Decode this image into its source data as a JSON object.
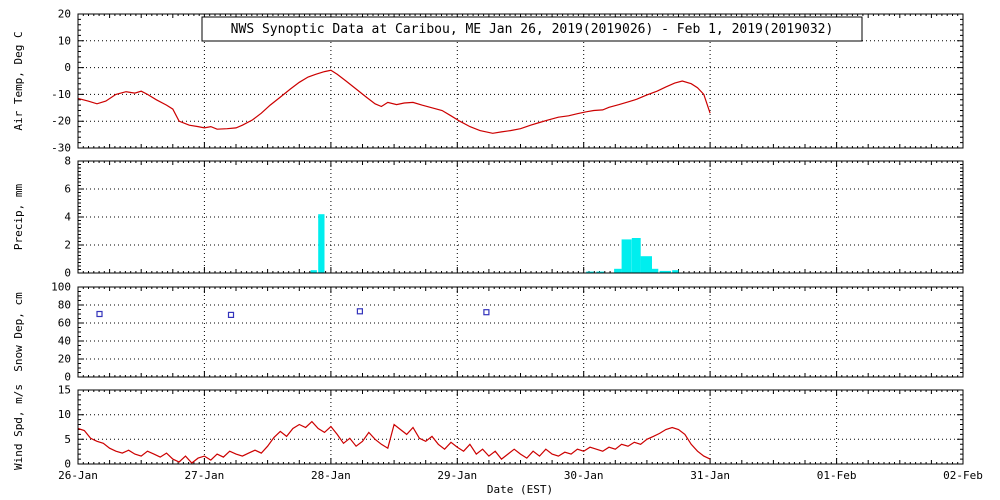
{
  "chart_data": {
    "type": "multi-panel-timeseries",
    "title": "NWS Synoptic Data at Caribou, ME  Jan 26, 2019(2019026) - Feb  1, 2019(2019032)",
    "xlabel": "Date (EST)",
    "x_tick_labels": [
      "26-Jan",
      "27-Jan",
      "28-Jan",
      "29-Jan",
      "30-Jan",
      "31-Jan",
      "01-Feb",
      "02-Feb"
    ],
    "x_range_days": [
      0,
      7
    ],
    "grid": "dotted",
    "legend": "none",
    "colors": {
      "line": "#cc0000",
      "precip_bar": "#00eeee",
      "snow_marker": "#3333bb",
      "axis": "#000000",
      "background": "#ffffff"
    },
    "panels": [
      {
        "name": "air_temp",
        "ylabel": "Air Temp, Deg C",
        "ylim": [
          -30,
          20
        ],
        "yticks": [
          20,
          10,
          0,
          -10,
          -20,
          -30
        ],
        "minor_step": 2,
        "type": "line",
        "points": [
          [
            0.0,
            -11.5
          ],
          [
            0.08,
            -12.5
          ],
          [
            0.15,
            -13.5
          ],
          [
            0.22,
            -12.5
          ],
          [
            0.3,
            -10
          ],
          [
            0.38,
            -9
          ],
          [
            0.45,
            -9.5
          ],
          [
            0.5,
            -8.8
          ],
          [
            0.55,
            -10
          ],
          [
            0.62,
            -12
          ],
          [
            0.7,
            -14
          ],
          [
            0.75,
            -15.5
          ],
          [
            0.8,
            -20
          ],
          [
            0.88,
            -21.5
          ],
          [
            0.95,
            -22
          ],
          [
            1.0,
            -22.5
          ],
          [
            1.05,
            -22
          ],
          [
            1.1,
            -23
          ],
          [
            1.18,
            -22.8
          ],
          [
            1.25,
            -22.5
          ],
          [
            1.3,
            -21.5
          ],
          [
            1.38,
            -19.5
          ],
          [
            1.45,
            -17
          ],
          [
            1.52,
            -14
          ],
          [
            1.6,
            -11
          ],
          [
            1.68,
            -8
          ],
          [
            1.75,
            -5.5
          ],
          [
            1.82,
            -3.5
          ],
          [
            1.88,
            -2.5
          ],
          [
            1.95,
            -1.5
          ],
          [
            2.0,
            -1
          ],
          [
            2.05,
            -2.5
          ],
          [
            2.12,
            -5
          ],
          [
            2.2,
            -8
          ],
          [
            2.28,
            -11
          ],
          [
            2.35,
            -13.5
          ],
          [
            2.4,
            -14.5
          ],
          [
            2.45,
            -13
          ],
          [
            2.52,
            -13.8
          ],
          [
            2.58,
            -13.2
          ],
          [
            2.65,
            -13
          ],
          [
            2.72,
            -14
          ],
          [
            2.8,
            -15
          ],
          [
            2.88,
            -16
          ],
          [
            2.95,
            -18
          ],
          [
            3.02,
            -20
          ],
          [
            3.1,
            -22
          ],
          [
            3.18,
            -23.5
          ],
          [
            3.28,
            -24.5
          ],
          [
            3.35,
            -24
          ],
          [
            3.42,
            -23.5
          ],
          [
            3.5,
            -22.8
          ],
          [
            3.58,
            -21.5
          ],
          [
            3.65,
            -20.5
          ],
          [
            3.72,
            -19.5
          ],
          [
            3.8,
            -18.5
          ],
          [
            3.88,
            -18
          ],
          [
            3.95,
            -17.2
          ],
          [
            4.02,
            -16.5
          ],
          [
            4.08,
            -16
          ],
          [
            4.15,
            -15.8
          ],
          [
            4.2,
            -14.8
          ],
          [
            4.28,
            -13.8
          ],
          [
            4.35,
            -12.8
          ],
          [
            4.42,
            -11.8
          ],
          [
            4.5,
            -10.2
          ],
          [
            4.58,
            -8.8
          ],
          [
            4.65,
            -7.2
          ],
          [
            4.72,
            -5.8
          ],
          [
            4.78,
            -5
          ],
          [
            4.85,
            -6
          ],
          [
            4.9,
            -7.5
          ],
          [
            4.95,
            -10
          ],
          [
            5.0,
            -17
          ]
        ]
      },
      {
        "name": "precip",
        "ylabel": "Precip, mm",
        "ylim": [
          0,
          8
        ],
        "yticks": [
          8,
          6,
          4,
          2,
          0
        ],
        "minor_step": 0.25,
        "type": "bar",
        "bars": [
          [
            1.84,
            0.05,
            0.2
          ],
          [
            1.9,
            0.05,
            4.2
          ],
          [
            4.02,
            0.06,
            0.1
          ],
          [
            4.1,
            0.06,
            0.1
          ],
          [
            4.24,
            0.06,
            0.3
          ],
          [
            4.3,
            0.08,
            2.4
          ],
          [
            4.38,
            0.07,
            2.5
          ],
          [
            4.45,
            0.09,
            1.2
          ],
          [
            4.54,
            0.05,
            0.3
          ],
          [
            4.6,
            0.09,
            0.15
          ],
          [
            4.7,
            0.05,
            0.2
          ]
        ]
      },
      {
        "name": "snow_depth",
        "ylabel": "Snow Dep, cm",
        "ylim": [
          0,
          100
        ],
        "yticks": [
          100,
          80,
          60,
          40,
          20,
          0
        ],
        "minor_step": 5,
        "type": "scatter-square",
        "points": [
          [
            0.17,
            70
          ],
          [
            1.21,
            69
          ],
          [
            2.23,
            73
          ],
          [
            3.23,
            72
          ]
        ]
      },
      {
        "name": "wind_speed",
        "ylabel": "Wind Spd, m/s",
        "ylim": [
          0,
          15
        ],
        "yticks": [
          15,
          10,
          5,
          0
        ],
        "minor_step": 1,
        "type": "line",
        "points": [
          [
            0.0,
            7.2
          ],
          [
            0.05,
            6.8
          ],
          [
            0.1,
            5.2
          ],
          [
            0.15,
            4.6
          ],
          [
            0.2,
            4.2
          ],
          [
            0.25,
            3.2
          ],
          [
            0.3,
            2.6
          ],
          [
            0.35,
            2.2
          ],
          [
            0.4,
            2.8
          ],
          [
            0.45,
            2.0
          ],
          [
            0.5,
            1.6
          ],
          [
            0.55,
            2.6
          ],
          [
            0.6,
            2.0
          ],
          [
            0.65,
            1.4
          ],
          [
            0.7,
            2.2
          ],
          [
            0.75,
            1.0
          ],
          [
            0.8,
            0.4
          ],
          [
            0.85,
            1.6
          ],
          [
            0.9,
            0.2
          ],
          [
            0.95,
            1.2
          ],
          [
            1.0,
            1.6
          ],
          [
            1.05,
            0.8
          ],
          [
            1.1,
            2.0
          ],
          [
            1.15,
            1.4
          ],
          [
            1.2,
            2.6
          ],
          [
            1.25,
            2.0
          ],
          [
            1.3,
            1.6
          ],
          [
            1.35,
            2.2
          ],
          [
            1.4,
            2.8
          ],
          [
            1.45,
            2.2
          ],
          [
            1.5,
            3.6
          ],
          [
            1.55,
            5.4
          ],
          [
            1.6,
            6.6
          ],
          [
            1.65,
            5.6
          ],
          [
            1.7,
            7.2
          ],
          [
            1.75,
            8.0
          ],
          [
            1.8,
            7.4
          ],
          [
            1.85,
            8.6
          ],
          [
            1.9,
            7.2
          ],
          [
            1.95,
            6.4
          ],
          [
            2.0,
            7.6
          ],
          [
            2.05,
            6.0
          ],
          [
            2.1,
            4.2
          ],
          [
            2.15,
            5.2
          ],
          [
            2.2,
            3.6
          ],
          [
            2.25,
            4.6
          ],
          [
            2.3,
            6.4
          ],
          [
            2.35,
            5.0
          ],
          [
            2.4,
            4.0
          ],
          [
            2.45,
            3.2
          ],
          [
            2.5,
            8.0
          ],
          [
            2.55,
            7.0
          ],
          [
            2.6,
            6.0
          ],
          [
            2.65,
            7.4
          ],
          [
            2.7,
            5.2
          ],
          [
            2.75,
            4.6
          ],
          [
            2.8,
            5.6
          ],
          [
            2.85,
            4.0
          ],
          [
            2.9,
            3.0
          ],
          [
            2.95,
            4.4
          ],
          [
            3.0,
            3.4
          ],
          [
            3.05,
            2.6
          ],
          [
            3.1,
            4.0
          ],
          [
            3.15,
            2.0
          ],
          [
            3.2,
            3.0
          ],
          [
            3.25,
            1.6
          ],
          [
            3.3,
            2.6
          ],
          [
            3.35,
            1.0
          ],
          [
            3.4,
            2.0
          ],
          [
            3.45,
            3.0
          ],
          [
            3.5,
            2.0
          ],
          [
            3.55,
            1.2
          ],
          [
            3.6,
            2.6
          ],
          [
            3.65,
            1.6
          ],
          [
            3.7,
            3.0
          ],
          [
            3.75,
            2.0
          ],
          [
            3.8,
            1.6
          ],
          [
            3.85,
            2.4
          ],
          [
            3.9,
            2.0
          ],
          [
            3.95,
            3.0
          ],
          [
            4.0,
            2.6
          ],
          [
            4.05,
            3.4
          ],
          [
            4.1,
            3.0
          ],
          [
            4.15,
            2.6
          ],
          [
            4.2,
            3.4
          ],
          [
            4.25,
            3.0
          ],
          [
            4.3,
            4.0
          ],
          [
            4.35,
            3.6
          ],
          [
            4.4,
            4.4
          ],
          [
            4.45,
            4.0
          ],
          [
            4.5,
            5.0
          ],
          [
            4.55,
            5.6
          ],
          [
            4.6,
            6.2
          ],
          [
            4.65,
            7.0
          ],
          [
            4.7,
            7.4
          ],
          [
            4.75,
            7.0
          ],
          [
            4.8,
            6.0
          ],
          [
            4.85,
            4.0
          ],
          [
            4.9,
            2.6
          ],
          [
            4.95,
            1.6
          ],
          [
            5.0,
            1.0
          ]
        ]
      }
    ]
  }
}
